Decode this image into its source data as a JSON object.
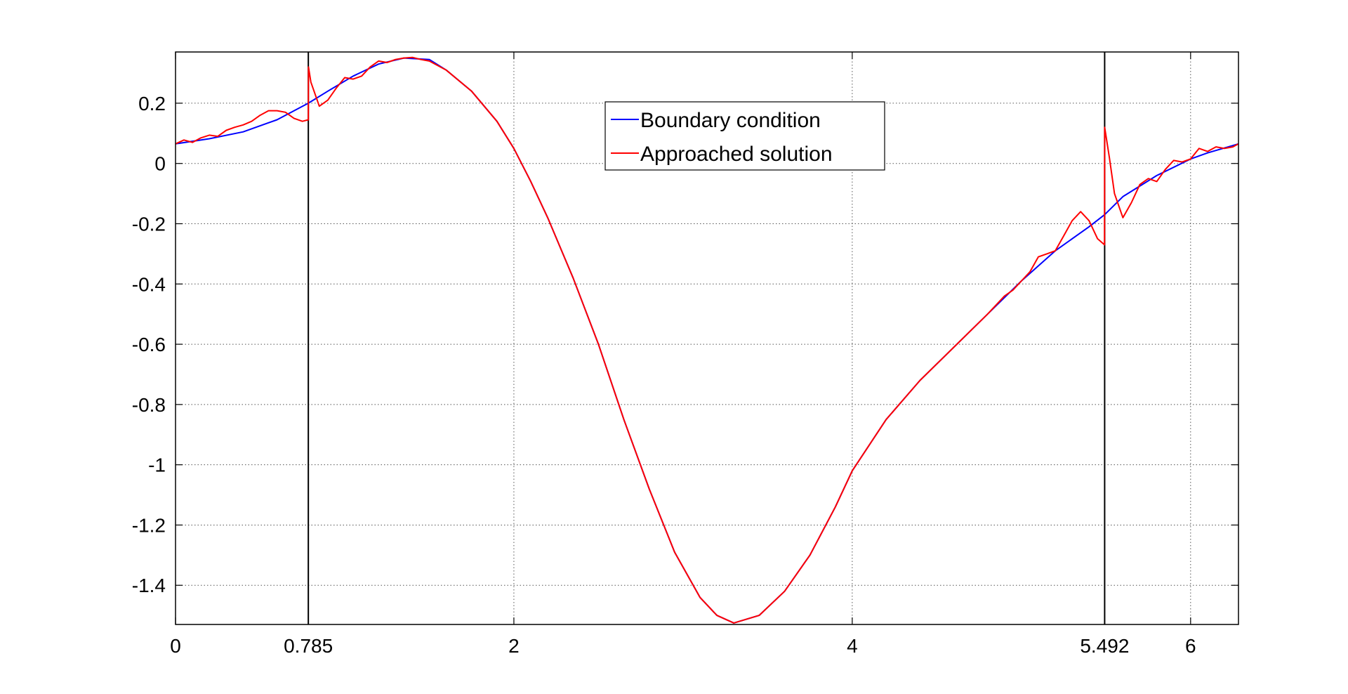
{
  "chart_data": {
    "type": "line",
    "xlim": [
      0,
      6.283
    ],
    "ylim": [
      -1.53,
      0.37
    ],
    "grid": true,
    "legend_placement": "top-center",
    "xticks": [
      {
        "value": 0,
        "label": "0"
      },
      {
        "value": 0.785,
        "label": "0.785"
      },
      {
        "value": 2,
        "label": "2"
      },
      {
        "value": 4,
        "label": "4"
      },
      {
        "value": 5.492,
        "label": "5.492"
      },
      {
        "value": 6,
        "label": "6"
      }
    ],
    "yticks": [
      {
        "value": 0.2,
        "label": "0.2"
      },
      {
        "value": 0,
        "label": "0"
      },
      {
        "value": -0.2,
        "label": "-0.2"
      },
      {
        "value": -0.4,
        "label": "-0.4"
      },
      {
        "value": -0.6,
        "label": "-0.6"
      },
      {
        "value": -0.8,
        "label": "-0.8"
      },
      {
        "value": -1,
        "label": "-1"
      },
      {
        "value": -1.2,
        "label": "-1.2"
      },
      {
        "value": -1.4,
        "label": "-1.4"
      }
    ],
    "vertical_lines": [
      0.785,
      5.492
    ],
    "series": [
      {
        "name": "Boundary condition",
        "color": "#0000ff",
        "x": [
          0,
          0.2,
          0.4,
          0.6,
          0.785,
          0.9,
          1.05,
          1.2,
          1.35,
          1.5,
          1.6,
          1.75,
          1.9,
          2.0,
          2.1,
          2.2,
          2.35,
          2.5,
          2.65,
          2.8,
          2.95,
          3.1,
          3.2,
          3.3,
          3.45,
          3.6,
          3.75,
          3.9,
          4.0,
          4.2,
          4.4,
          4.6,
          4.8,
          5.0,
          5.2,
          5.4,
          5.492,
          5.6,
          5.8,
          6.0,
          6.1,
          6.283
        ],
        "y": [
          0.065,
          0.082,
          0.105,
          0.145,
          0.2,
          0.24,
          0.29,
          0.33,
          0.35,
          0.345,
          0.31,
          0.24,
          0.14,
          0.05,
          -0.06,
          -0.18,
          -0.38,
          -0.6,
          -0.85,
          -1.08,
          -1.29,
          -1.44,
          -1.5,
          -1.525,
          -1.5,
          -1.42,
          -1.3,
          -1.14,
          -1.02,
          -0.85,
          -0.72,
          -0.61,
          -0.5,
          -0.39,
          -0.29,
          -0.21,
          -0.17,
          -0.11,
          -0.04,
          0.015,
          0.035,
          0.065
        ]
      },
      {
        "name": "Approached solution",
        "color": "#ff0000",
        "x": [
          0,
          0.05,
          0.1,
          0.15,
          0.2,
          0.25,
          0.3,
          0.35,
          0.4,
          0.45,
          0.5,
          0.55,
          0.6,
          0.65,
          0.7,
          0.75,
          0.785,
          0.786,
          0.8,
          0.85,
          0.9,
          0.95,
          1.0,
          1.05,
          1.1,
          1.15,
          1.2,
          1.25,
          1.3,
          1.35,
          1.4,
          1.45,
          1.5,
          1.6,
          1.75,
          1.9,
          2.0,
          2.1,
          2.2,
          2.35,
          2.5,
          2.65,
          2.8,
          2.95,
          3.1,
          3.2,
          3.3,
          3.45,
          3.6,
          3.75,
          3.9,
          4.0,
          4.2,
          4.4,
          4.6,
          4.8,
          4.9,
          4.95,
          5.0,
          5.05,
          5.1,
          5.15,
          5.2,
          5.25,
          5.3,
          5.35,
          5.4,
          5.45,
          5.491,
          5.492,
          5.52,
          5.55,
          5.6,
          5.65,
          5.7,
          5.75,
          5.8,
          5.85,
          5.9,
          5.95,
          6.0,
          6.05,
          6.1,
          6.15,
          6.2,
          6.25,
          6.283
        ],
        "y": [
          0.065,
          0.078,
          0.07,
          0.085,
          0.094,
          0.09,
          0.11,
          0.12,
          0.128,
          0.14,
          0.16,
          0.175,
          0.175,
          0.17,
          0.15,
          0.14,
          0.145,
          0.32,
          0.27,
          0.19,
          0.21,
          0.25,
          0.285,
          0.28,
          0.29,
          0.32,
          0.34,
          0.335,
          0.345,
          0.35,
          0.352,
          0.345,
          0.34,
          0.31,
          0.24,
          0.14,
          0.05,
          -0.06,
          -0.18,
          -0.38,
          -0.6,
          -0.85,
          -1.08,
          -1.29,
          -1.44,
          -1.5,
          -1.525,
          -1.5,
          -1.42,
          -1.3,
          -1.14,
          -1.02,
          -0.85,
          -0.72,
          -0.61,
          -0.5,
          -0.44,
          -0.42,
          -0.39,
          -0.36,
          -0.31,
          -0.3,
          -0.29,
          -0.24,
          -0.19,
          -0.16,
          -0.19,
          -0.25,
          -0.27,
          0.12,
          0.02,
          -0.1,
          -0.18,
          -0.13,
          -0.07,
          -0.05,
          -0.06,
          -0.02,
          0.01,
          0.005,
          0.015,
          0.05,
          0.04,
          0.055,
          0.05,
          0.055,
          0.065
        ]
      }
    ]
  }
}
